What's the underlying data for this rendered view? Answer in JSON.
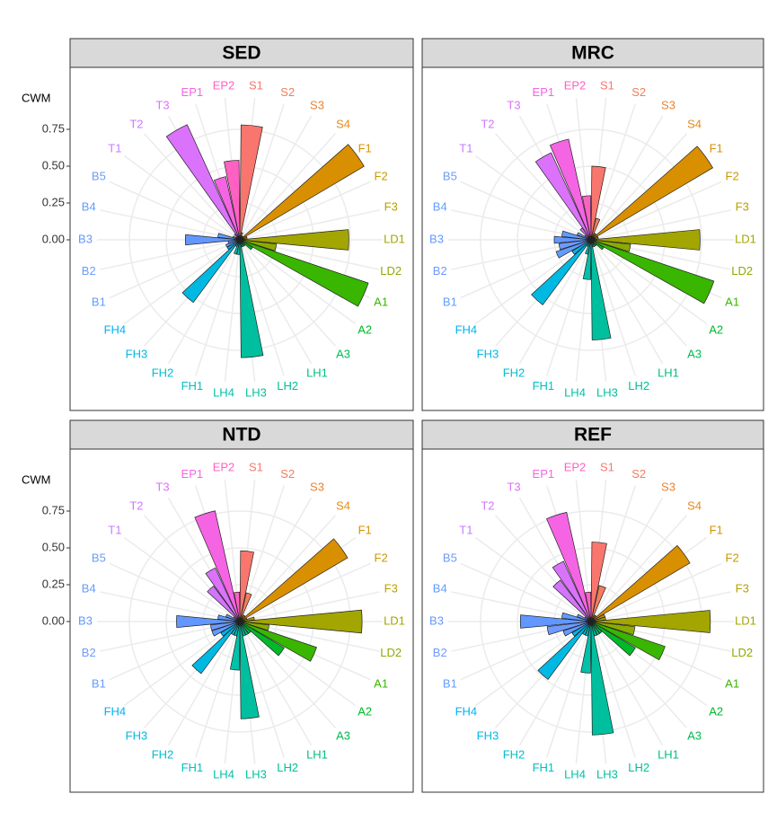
{
  "chart_data": [
    {
      "type": "polar-bar",
      "title": "SED",
      "ylabel": "CWM",
      "categories": [
        "S1",
        "S2",
        "S3",
        "S4",
        "F1",
        "F2",
        "F3",
        "LD1",
        "LD2",
        "A1",
        "A2",
        "A3",
        "LH1",
        "LH2",
        "LH3",
        "LH4",
        "FH1",
        "FH2",
        "FH3",
        "FH4",
        "B1",
        "B2",
        "B3",
        "B4",
        "B5",
        "T1",
        "T2",
        "T3",
        "EP1",
        "EP2"
      ],
      "colors": [
        "#F8766D",
        "#F17E5D",
        "#EA8331",
        "#E48A19",
        "#D89000",
        "#C99800",
        "#B99F00",
        "#A3A500",
        "#8CAB00",
        "#39B600",
        "#00B929",
        "#00BB4E",
        "#00BF7D",
        "#00C097",
        "#00BF9E",
        "#00C1AA",
        "#00BFC4",
        "#00BDD0",
        "#00B9E3",
        "#00B2F0",
        "#619CFF",
        "#6F9AFF",
        "#6297FF",
        "#619CFF",
        "#6E9BF4",
        "#C77CFF",
        "#D274FC",
        "#DB72FB",
        "#F564E3",
        "#FF61C3"
      ],
      "values": [
        0.78,
        0.05,
        0.03,
        0.03,
        0.98,
        0.05,
        0.05,
        0.74,
        0.25,
        0.92,
        0.1,
        0.05,
        0.05,
        0.05,
        0.8,
        0.1,
        0.1,
        0.05,
        0.53,
        0.1,
        0.1,
        0.08,
        0.37,
        0.15,
        0.05,
        0.03,
        0.05,
        0.86,
        0.44,
        0.54
      ],
      "ylim": [
        0,
        1.0
      ],
      "yticks": [
        {
          "value": 0,
          "label": "0.00"
        },
        {
          "value": 0.25,
          "label": "0.25"
        },
        {
          "value": 0.5,
          "label": "0.50"
        },
        {
          "value": 0.75,
          "label": "0.75"
        }
      ]
    },
    {
      "type": "polar-bar",
      "title": "MRC",
      "categories": [
        "S1",
        "S2",
        "S3",
        "S4",
        "F1",
        "F2",
        "F3",
        "LD1",
        "LD2",
        "A1",
        "A2",
        "A3",
        "LH1",
        "LH2",
        "LH3",
        "LH4",
        "FH1",
        "FH2",
        "FH3",
        "FH4",
        "B1",
        "B2",
        "B3",
        "B4",
        "B5",
        "T1",
        "T2",
        "T3",
        "EP1",
        "EP2"
      ],
      "colors": [
        "#F8766D",
        "#F17E5D",
        "#EA8331",
        "#E48A19",
        "#D89000",
        "#C99800",
        "#B99F00",
        "#A3A500",
        "#8CAB00",
        "#39B600",
        "#00B929",
        "#00BB4E",
        "#00BF7D",
        "#00C097",
        "#00BF9E",
        "#00C1AA",
        "#00BFC4",
        "#00BDD0",
        "#00B9E3",
        "#00B2F0",
        "#619CFF",
        "#6F9AFF",
        "#6297FF",
        "#619CFF",
        "#6E9BF4",
        "#C77CFF",
        "#D274FC",
        "#DB72FB",
        "#F564E3",
        "#FF61C3"
      ],
      "values": [
        0.5,
        0.15,
        0.05,
        0.05,
        0.96,
        0.05,
        0.05,
        0.74,
        0.27,
        0.88,
        0.1,
        0.05,
        0.05,
        0.05,
        0.68,
        0.27,
        0.1,
        0.05,
        0.55,
        0.15,
        0.25,
        0.22,
        0.25,
        0.2,
        0.1,
        0.05,
        0.1,
        0.65,
        0.7,
        0.3
      ],
      "ylim": [
        0,
        1.0
      ],
      "yticks": [
        {
          "value": 0,
          "label": "0.00"
        },
        {
          "value": 0.25,
          "label": "0.25"
        },
        {
          "value": 0.5,
          "label": "0.50"
        },
        {
          "value": 0.75,
          "label": "0.75"
        }
      ]
    },
    {
      "type": "polar-bar",
      "title": "NTD",
      "ylabel": "CWM",
      "categories": [
        "S1",
        "S2",
        "S3",
        "S4",
        "F1",
        "F2",
        "F3",
        "LD1",
        "LD2",
        "A1",
        "A2",
        "A3",
        "LH1",
        "LH2",
        "LH3",
        "LH4",
        "FH1",
        "FH2",
        "FH3",
        "FH4",
        "B1",
        "B2",
        "B3",
        "B4",
        "B5",
        "T1",
        "T2",
        "T3",
        "EP1",
        "EP2"
      ],
      "colors": [
        "#F8766D",
        "#F17E5D",
        "#EA8331",
        "#E48A19",
        "#D89000",
        "#C99800",
        "#B99F00",
        "#A3A500",
        "#8CAB00",
        "#39B600",
        "#00B929",
        "#00BB4E",
        "#00BF7D",
        "#00C097",
        "#00BF9E",
        "#00C1AA",
        "#00BFC4",
        "#00BDD0",
        "#00B9E3",
        "#00B2F0",
        "#619CFF",
        "#6F9AFF",
        "#6297FF",
        "#619CFF",
        "#6E9BF4",
        "#C77CFF",
        "#D274FC",
        "#DB72FB",
        "#F564E3",
        "#FF61C3"
      ],
      "values": [
        0.48,
        0.2,
        0.05,
        0.05,
        0.85,
        0.05,
        0.1,
        0.83,
        0.2,
        0.55,
        0.35,
        0.1,
        0.1,
        0.1,
        0.66,
        0.33,
        0.1,
        0.1,
        0.44,
        0.15,
        0.2,
        0.2,
        0.43,
        0.15,
        0.1,
        0.05,
        0.3,
        0.4,
        0.77,
        0.2
      ],
      "ylim": [
        0,
        1.0
      ],
      "yticks": [
        {
          "value": 0,
          "label": "0.00"
        },
        {
          "value": 0.25,
          "label": "0.25"
        },
        {
          "value": 0.5,
          "label": "0.50"
        },
        {
          "value": 0.75,
          "label": "0.75"
        }
      ]
    },
    {
      "type": "polar-bar",
      "title": "REF",
      "categories": [
        "S1",
        "S2",
        "S3",
        "S4",
        "F1",
        "F2",
        "F3",
        "LD1",
        "LD2",
        "A1",
        "A2",
        "A3",
        "LH1",
        "LH2",
        "LH3",
        "LH4",
        "FH1",
        "FH2",
        "FH3",
        "FH4",
        "B1",
        "B2",
        "B3",
        "B4",
        "B5",
        "T1",
        "T2",
        "T3",
        "EP1",
        "EP2"
      ],
      "colors": [
        "#F8766D",
        "#F17E5D",
        "#EA8331",
        "#E48A19",
        "#D89000",
        "#C99800",
        "#B99F00",
        "#A3A500",
        "#8CAB00",
        "#39B600",
        "#00B929",
        "#00BB4E",
        "#00BF7D",
        "#00C097",
        "#00BF9E",
        "#00C1AA",
        "#00BFC4",
        "#00BDD0",
        "#00B9E3",
        "#00B2F0",
        "#619CFF",
        "#6F9AFF",
        "#6297FF",
        "#619CFF",
        "#6E9BF4",
        "#C77CFF",
        "#D274FC",
        "#DB72FB",
        "#F564E3",
        "#FF61C3"
      ],
      "values": [
        0.54,
        0.25,
        0.05,
        0.05,
        0.78,
        0.1,
        0.1,
        0.81,
        0.3,
        0.53,
        0.35,
        0.1,
        0.1,
        0.1,
        0.77,
        0.35,
        0.1,
        0.1,
        0.49,
        0.15,
        0.2,
        0.3,
        0.48,
        0.2,
        0.1,
        0.05,
        0.35,
        0.45,
        0.76,
        0.2
      ],
      "ylim": [
        0,
        1.0
      ],
      "yticks": [
        {
          "value": 0,
          "label": "0.00"
        },
        {
          "value": 0.25,
          "label": "0.25"
        },
        {
          "value": 0.5,
          "label": "0.50"
        },
        {
          "value": 0.75,
          "label": "0.75"
        }
      ]
    }
  ]
}
